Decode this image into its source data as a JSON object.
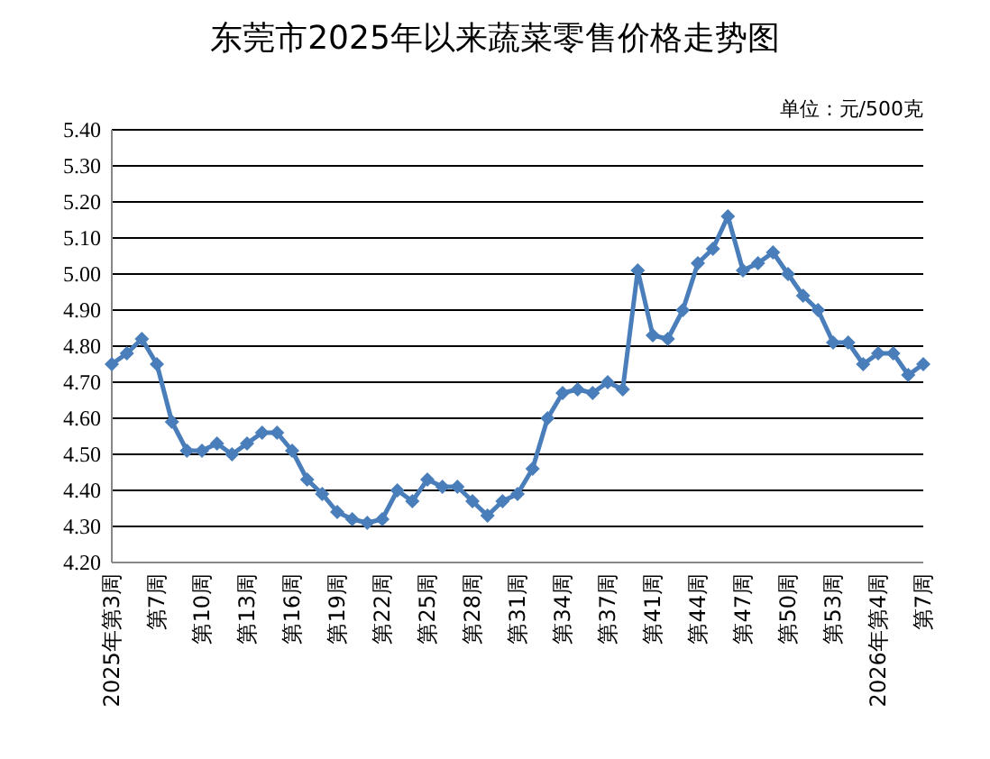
{
  "chart_data": {
    "type": "line",
    "title": "东莞市2025年以来蔬菜零售价格走势图",
    "annotations": [
      "单位：元/500克"
    ],
    "categories": [
      "2025年第3周",
      null,
      null,
      "第7周",
      null,
      null,
      "第10周",
      null,
      null,
      "第13周",
      null,
      null,
      "第16周",
      null,
      null,
      "第19周",
      null,
      null,
      "第22周",
      null,
      null,
      "第25周",
      null,
      null,
      "第28周",
      null,
      null,
      "第31周",
      null,
      null,
      "第34周",
      null,
      null,
      "第37周",
      null,
      null,
      "第41周",
      null,
      null,
      "第44周",
      null,
      null,
      "第47周",
      null,
      null,
      "第50周",
      null,
      null,
      "第53周",
      null,
      null,
      "2026年第4周",
      null,
      null,
      "第7周"
    ],
    "series": [
      {
        "color": "#4a7ebb",
        "values": [
          4.75,
          4.78,
          4.82,
          4.75,
          4.59,
          4.51,
          4.51,
          4.53,
          4.5,
          4.53,
          4.56,
          4.56,
          4.51,
          4.43,
          4.39,
          4.34,
          4.32,
          4.31,
          4.32,
          4.4,
          4.37,
          4.43,
          4.41,
          4.41,
          4.37,
          4.33,
          4.37,
          4.39,
          4.46,
          4.6,
          4.67,
          4.68,
          4.67,
          4.7,
          4.68,
          5.01,
          4.83,
          4.82,
          4.9,
          5.03,
          5.07,
          5.16,
          5.01,
          5.03,
          5.06,
          5.0,
          4.94,
          4.9,
          4.81,
          4.81,
          4.75,
          4.78,
          4.78,
          4.72,
          4.75
        ]
      }
    ],
    "ylim": [
      4.2,
      5.4
    ],
    "yticks": [
      {
        "value": 4.2,
        "label": "4.20"
      },
      {
        "value": 4.3,
        "label": "4.30"
      },
      {
        "value": 4.4,
        "label": "4.40"
      },
      {
        "value": 4.5,
        "label": "4.50"
      },
      {
        "value": 4.6,
        "label": "4.60"
      },
      {
        "value": 4.7,
        "label": "4.70"
      },
      {
        "value": 4.8,
        "label": "4.80"
      },
      {
        "value": 4.9,
        "label": "4.90"
      },
      {
        "value": 5.0,
        "label": "5.00"
      },
      {
        "value": 5.1,
        "label": "5.10"
      },
      {
        "value": 5.2,
        "label": "5.20"
      },
      {
        "value": 5.3,
        "label": "5.30"
      },
      {
        "value": 5.4,
        "label": "5.40"
      }
    ],
    "grid": "y",
    "marker": "diamond",
    "line_style": "solid"
  }
}
